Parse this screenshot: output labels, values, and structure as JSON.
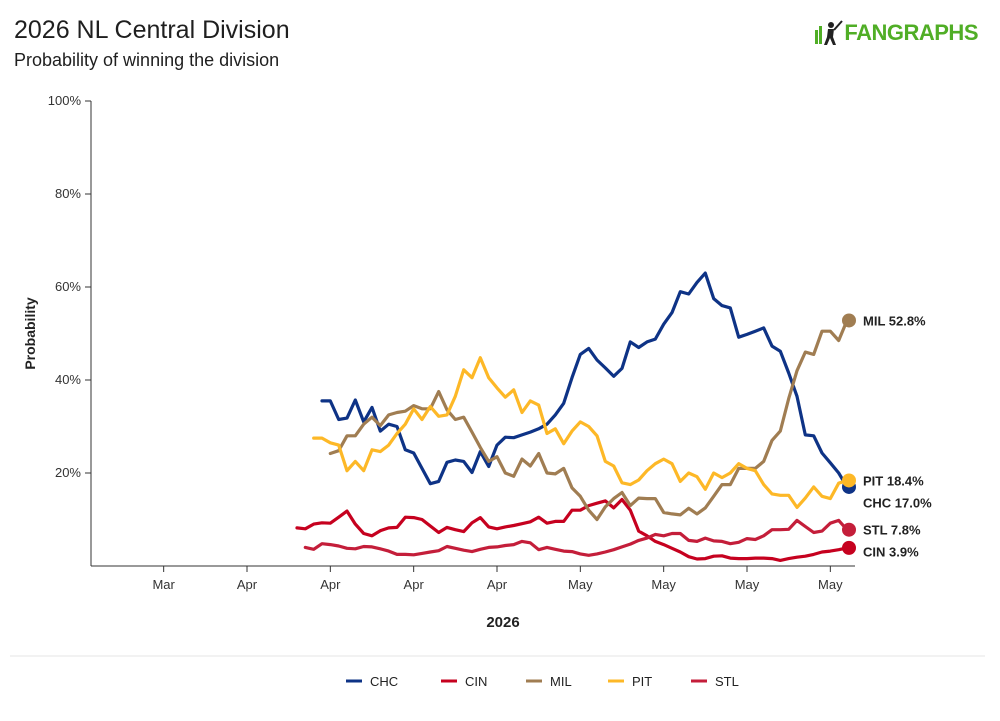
{
  "header": {
    "title": "2026 NL Central Division",
    "subtitle": "Probability of winning the division",
    "logo_text": "FANGRAPHS"
  },
  "chart_data": {
    "type": "line",
    "ylabel": "Probability",
    "xlabel": "2026",
    "ylim": [
      0,
      100
    ],
    "y_ticks": [
      "100%",
      "80%",
      "60%",
      "40%",
      "20%"
    ],
    "y_tick_values": [
      100,
      80,
      60,
      40,
      20
    ],
    "x_tick_labels": [
      "Mar",
      "Apr",
      "Apr",
      "Apr",
      "Apr",
      "May",
      "May",
      "May",
      "May"
    ],
    "x_tick_index": [
      8,
      18,
      28,
      38,
      48,
      58,
      68,
      78,
      88
    ],
    "n_points": 91,
    "grid": false,
    "legend_position": "bottom",
    "series": [
      {
        "name": "CHC",
        "color": "#0e3386",
        "end_label": "CHC 17.0%",
        "values": [
          35.5,
          35.5,
          31.5,
          31.8,
          35.7,
          31.0,
          34.1,
          29.0,
          30.5,
          30.0,
          25.0,
          24.3,
          21.0,
          17.7,
          18.2,
          22.3,
          22.8,
          22.5,
          20.1,
          24.6,
          21.4,
          26.0,
          27.7,
          27.6,
          28.2,
          28.8,
          29.5,
          30.5,
          32.5,
          35.0,
          40.5,
          45.5,
          46.8,
          44.3,
          42.6,
          40.8,
          42.5,
          48.2,
          47.0,
          48.2,
          48.8,
          52.0,
          54.5,
          59.0,
          58.5,
          61.0,
          63.0,
          57.5,
          56.0,
          55.5,
          49.2,
          49.8,
          50.5,
          51.2,
          47.3,
          46.2,
          41.5,
          36.5,
          28.2,
          28.0,
          24.3,
          22.2,
          20.0,
          17.0
        ]
      },
      {
        "name": "CIN",
        "color": "#c6011f",
        "end_label": "CIN 3.9%",
        "values": [
          8.2,
          8.0,
          9.0,
          9.3,
          9.2,
          10.5,
          11.8,
          9.0,
          7.0,
          6.5,
          7.6,
          8.2,
          8.3,
          10.5,
          10.4,
          10.0,
          8.6,
          7.2,
          8.3,
          7.8,
          7.4,
          9.3,
          10.4,
          8.4,
          8.0,
          8.4,
          8.7,
          9.1,
          9.5,
          10.5,
          9.2,
          9.6,
          9.6,
          12.0,
          12.0,
          13.0,
          13.5,
          14.0,
          12.5,
          14.3,
          12.0,
          7.5,
          6.5,
          5.3,
          4.6,
          3.8,
          3.0,
          2.0,
          1.5,
          1.6,
          2.1,
          2.2,
          1.7,
          1.6,
          1.6,
          1.7,
          1.7,
          1.6,
          1.2,
          1.6,
          1.9,
          2.1,
          2.5,
          3.0,
          3.2,
          3.5,
          3.9
        ]
      },
      {
        "name": "MIL",
        "color": "#a07d52",
        "end_label": "MIL 52.8%",
        "values": [
          24.2,
          24.8,
          28.0,
          28.0,
          30.5,
          32.0,
          30.2,
          32.5,
          33.0,
          33.3,
          34.5,
          33.8,
          33.8,
          37.5,
          33.6,
          31.5,
          32.0,
          28.8,
          25.5,
          22.5,
          23.5,
          20.0,
          19.3,
          23.0,
          21.5,
          24.2,
          20.0,
          19.8,
          21.0,
          16.8,
          15.0,
          12.0,
          10.0,
          12.7,
          14.5,
          15.8,
          13.0,
          14.6,
          14.5,
          14.5,
          11.5,
          11.2,
          11.0,
          12.4,
          11.2,
          12.5,
          15.0,
          17.5,
          17.5,
          21.0,
          21.0,
          21.0,
          22.5,
          27.0,
          29.0,
          36.0,
          42.0,
          46.0,
          45.5,
          50.5,
          50.5,
          48.5,
          52.8
        ]
      },
      {
        "name": "PIT",
        "color": "#fdb827",
        "end_label": "PIT 18.4%",
        "values": [
          27.5,
          27.5,
          26.5,
          26.0,
          20.5,
          22.5,
          20.5,
          25.0,
          24.6,
          26.0,
          28.5,
          30.5,
          33.8,
          31.5,
          34.3,
          32.2,
          32.5,
          36.5,
          42.2,
          40.5,
          44.8,
          40.5,
          38.3,
          36.3,
          37.9,
          33.0,
          35.5,
          34.6,
          28.5,
          29.5,
          26.3,
          29.0,
          31.0,
          30.0,
          28.0,
          22.5,
          21.5,
          17.9,
          17.5,
          18.5,
          20.5,
          22.0,
          23.0,
          22.0,
          18.2,
          20.0,
          19.2,
          16.5,
          20.0,
          19.0,
          20.0,
          22.0,
          21.0,
          20.5,
          17.5,
          15.5,
          15.2,
          15.2,
          12.6,
          14.6,
          17.0,
          15.0,
          14.5,
          17.8,
          18.4
        ]
      },
      {
        "name": "STL",
        "color": "#c41e3a",
        "end_label": "STL 7.8%",
        "values": [
          4.0,
          3.6,
          4.8,
          4.6,
          4.3,
          3.8,
          3.7,
          4.2,
          4.1,
          3.7,
          3.2,
          2.5,
          2.5,
          2.4,
          2.7,
          3.0,
          3.3,
          4.2,
          3.8,
          3.4,
          3.1,
          3.6,
          4.0,
          4.1,
          4.4,
          4.6,
          5.3,
          5.0,
          3.5,
          4.0,
          3.6,
          3.2,
          3.1,
          2.6,
          2.3,
          2.6,
          3.0,
          3.5,
          4.1,
          4.7,
          5.5,
          6.0,
          6.8,
          6.5,
          7.0,
          7.0,
          5.5,
          5.3,
          6.0,
          5.4,
          5.3,
          4.8,
          5.1,
          5.9,
          5.7,
          6.5,
          7.8,
          7.8,
          7.9,
          9.8,
          8.5,
          7.2,
          7.5,
          9.2,
          9.8,
          7.8
        ]
      }
    ]
  }
}
